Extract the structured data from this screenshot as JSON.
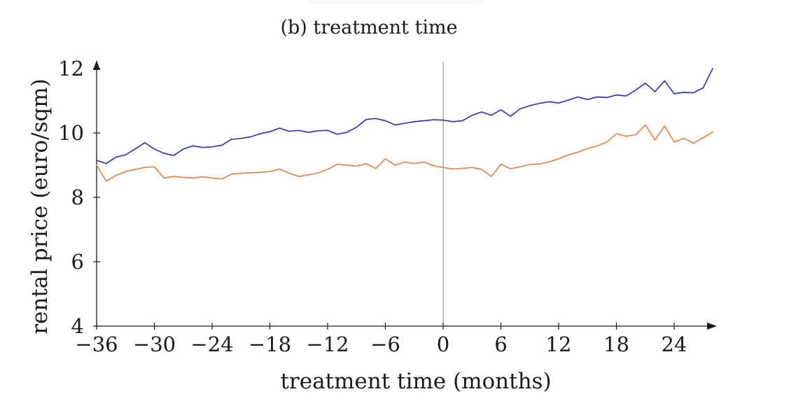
{
  "chart_data": {
    "type": "line",
    "title": "(b) treatment time",
    "xlabel": "treatment time (months)",
    "ylabel": "rental price (euro/sqm)",
    "xlim": [
      -36,
      29
    ],
    "ylim": [
      4,
      12
    ],
    "x_ticks": [
      -36,
      -30,
      -24,
      -18,
      -12,
      -6,
      0,
      6,
      12,
      18,
      24
    ],
    "y_ticks": [
      4,
      6,
      8,
      10,
      12
    ],
    "grid": false,
    "legend": "none",
    "axis_color": "#1a1a1a",
    "reference_line_x": 0,
    "reference_line_color": "#a8a8a8",
    "x": [
      -36,
      -35,
      -34,
      -33,
      -32,
      -31,
      -30,
      -29,
      -28,
      -27,
      -26,
      -25,
      -24,
      -23,
      -22,
      -21,
      -20,
      -19,
      -18,
      -17,
      -16,
      -15,
      -14,
      -13,
      -12,
      -11,
      -10,
      -9,
      -8,
      -7,
      -6,
      -5,
      -4,
      -3,
      -2,
      -1,
      0,
      1,
      2,
      3,
      4,
      5,
      6,
      7,
      8,
      9,
      10,
      11,
      12,
      13,
      14,
      15,
      16,
      17,
      18,
      19,
      20,
      21,
      22,
      23,
      24,
      25,
      26,
      27,
      28
    ],
    "series": [
      {
        "name": "blue",
        "color": "#3434cf",
        "values": [
          9.15,
          9.05,
          9.25,
          9.32,
          9.5,
          9.7,
          9.5,
          9.37,
          9.3,
          9.5,
          9.6,
          9.55,
          9.57,
          9.62,
          9.8,
          9.83,
          9.88,
          9.98,
          10.04,
          10.15,
          10.05,
          10.08,
          10.02,
          10.07,
          10.08,
          9.96,
          10.02,
          10.18,
          10.42,
          10.45,
          10.38,
          10.25,
          10.3,
          10.35,
          10.38,
          10.41,
          10.4,
          10.35,
          10.38,
          10.55,
          10.65,
          10.55,
          10.72,
          10.52,
          10.75,
          10.85,
          10.92,
          10.97,
          10.93,
          11.02,
          11.12,
          11.04,
          11.12,
          11.1,
          11.18,
          11.15,
          11.33,
          11.55,
          11.28,
          11.62,
          11.22,
          11.26,
          11.25,
          11.4,
          12.0
        ]
      },
      {
        "name": "orange",
        "color": "#ef8348",
        "values": [
          9.0,
          8.5,
          8.68,
          8.8,
          8.87,
          8.93,
          8.95,
          8.6,
          8.65,
          8.62,
          8.6,
          8.64,
          8.6,
          8.57,
          8.72,
          8.75,
          8.76,
          8.78,
          8.8,
          8.88,
          8.75,
          8.65,
          8.7,
          8.76,
          8.87,
          9.03,
          9.0,
          8.97,
          9.05,
          8.9,
          9.2,
          9.0,
          9.1,
          9.05,
          9.1,
          8.98,
          8.93,
          8.88,
          8.9,
          8.93,
          8.87,
          8.65,
          9.03,
          8.89,
          8.95,
          9.02,
          9.04,
          9.1,
          9.2,
          9.32,
          9.4,
          9.52,
          9.6,
          9.72,
          9.98,
          9.9,
          9.95,
          10.25,
          9.78,
          10.22,
          9.72,
          9.84,
          9.68,
          9.85,
          10.03
        ]
      }
    ]
  }
}
